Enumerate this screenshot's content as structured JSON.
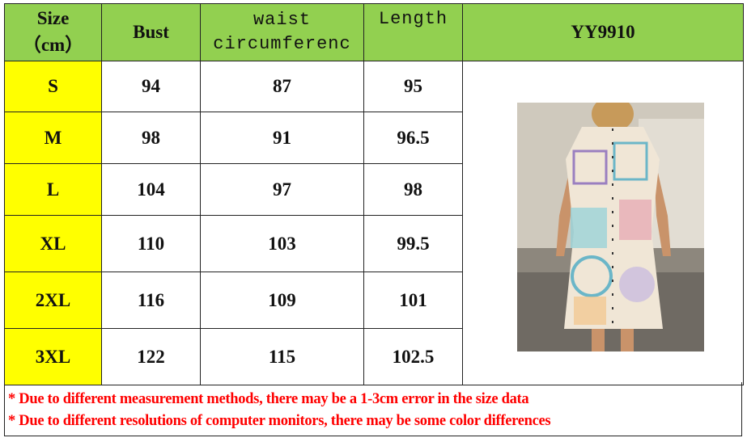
{
  "table": {
    "headers": {
      "size": "Size",
      "size_unit": "（cm）",
      "bust": "Bust",
      "waist_1": "waist",
      "waist_2": "circumferenc",
      "length": "Length",
      "model": "YY9910"
    },
    "rows": [
      {
        "size": "S",
        "bust": "94",
        "waist": "87",
        "length": "95"
      },
      {
        "size": "M",
        "bust": "98",
        "waist": "91",
        "length": "96.5"
      },
      {
        "size": "L",
        "bust": "104",
        "waist": "97",
        "length": "98"
      },
      {
        "size": "XL",
        "bust": "110",
        "waist": "103",
        "length": "99.5"
      },
      {
        "size": "2XL",
        "bust": "116",
        "waist": "109",
        "length": "101"
      },
      {
        "size": "3XL",
        "bust": "122",
        "waist": "115",
        "length": "102.5"
      }
    ]
  },
  "notes": [
    "* Due to different measurement methods, there may be a 1-3cm error in the size data",
    "* Due to different resolutions of computer monitors, there may be some color differences"
  ],
  "colors": {
    "header": "#92d050",
    "size_column": "#ffff00",
    "note_text": "#ff0000"
  },
  "image": {
    "subject": "product-photo-dress"
  }
}
